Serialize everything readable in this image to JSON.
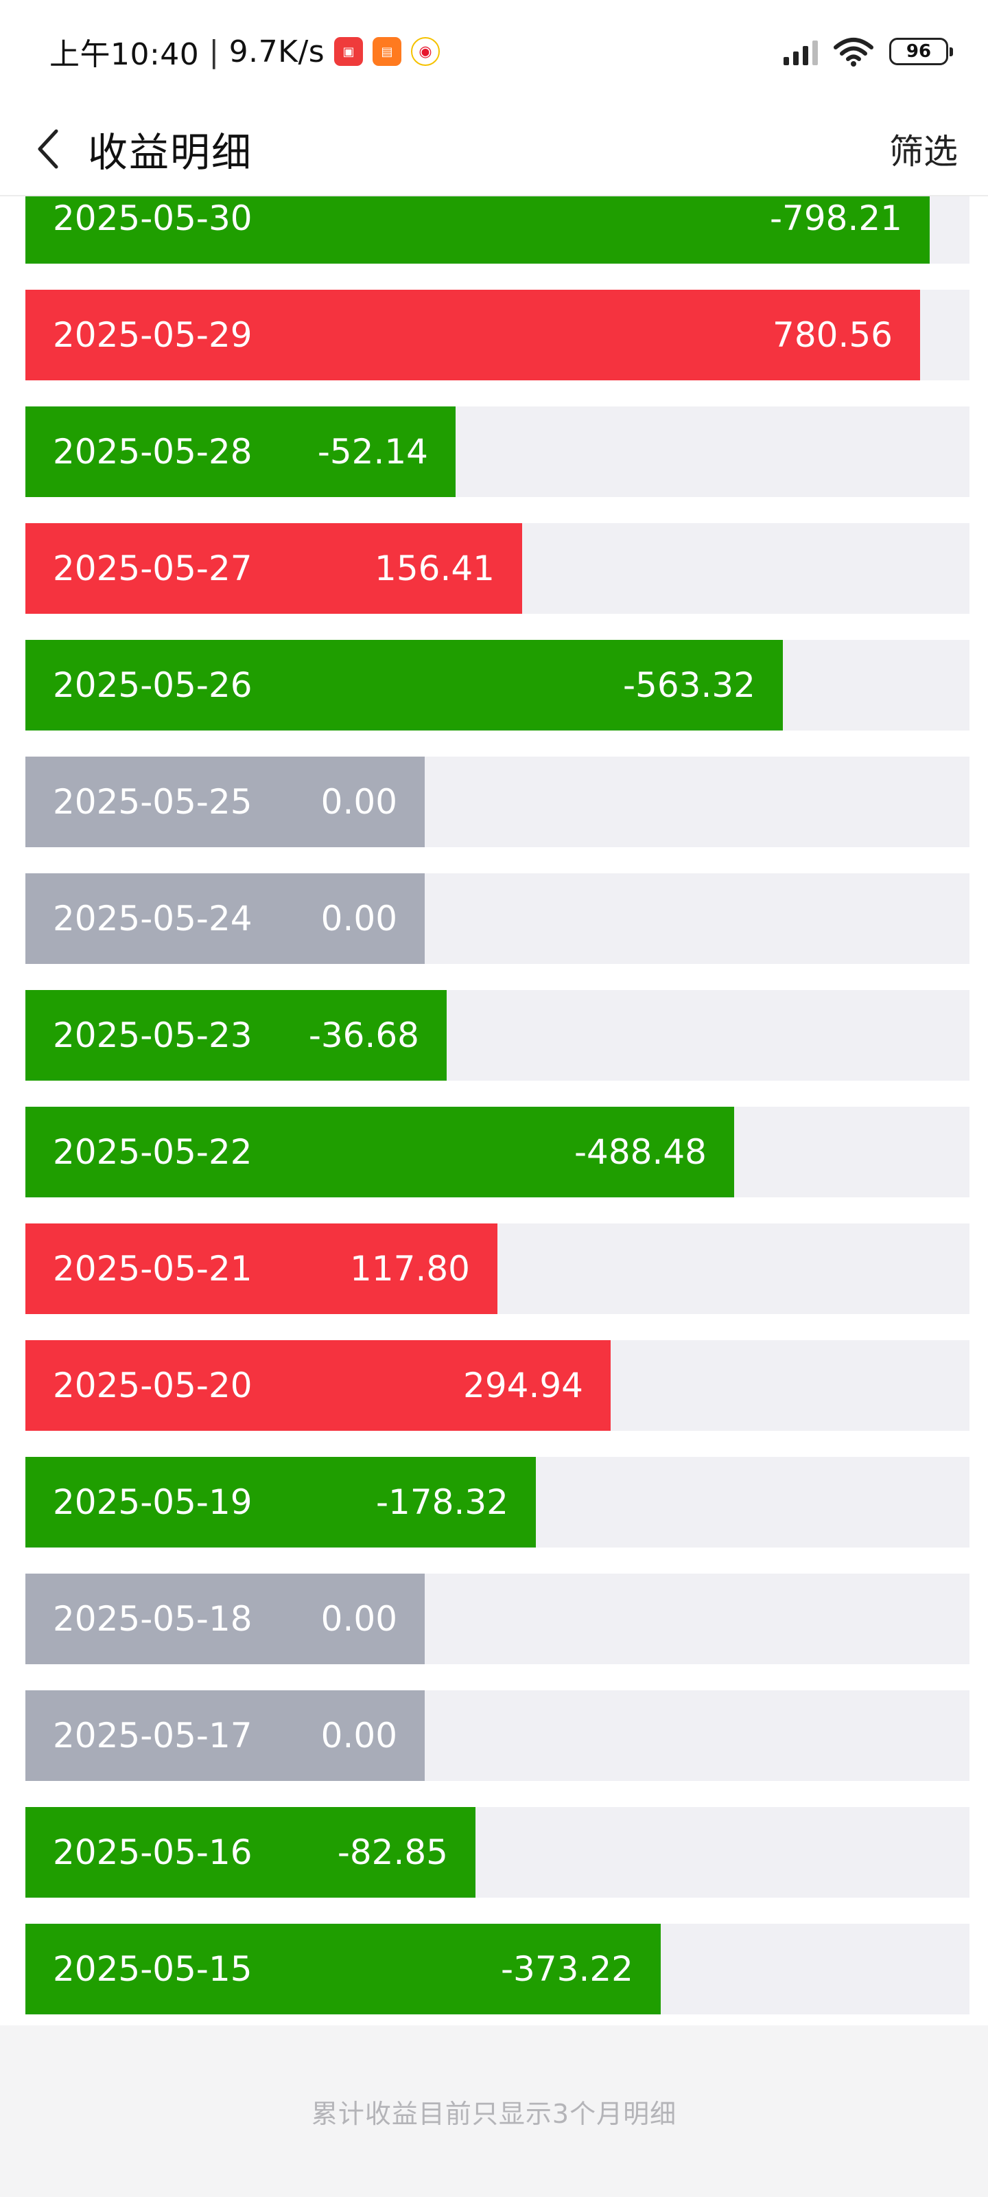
{
  "status_bar": {
    "time": "上午10:40",
    "net_speed": "9.7K/s",
    "battery": "96",
    "icons": [
      "app-red-icon",
      "app-orange-icon",
      "weibo-icon",
      "signal-icon",
      "wifi-icon",
      "battery-icon"
    ]
  },
  "header": {
    "title": "收益明细",
    "filter_label": "筛选",
    "back_icon": "chevron-left-icon"
  },
  "colors": {
    "loss": "#1f9e00",
    "gain": "#f5333f",
    "flat": "#a8acb8",
    "track": "#f0f0f4"
  },
  "rows": [
    {
      "date": "2025-05-30",
      "amount": "-798.21",
      "sign": "neg",
      "fill": 0.958
    },
    {
      "date": "2025-05-29",
      "amount": "780.56",
      "sign": "pos",
      "fill": 0.948
    },
    {
      "date": "2025-05-28",
      "amount": "-52.14",
      "sign": "neg",
      "fill": 0.456
    },
    {
      "date": "2025-05-27",
      "amount": "156.41",
      "sign": "pos",
      "fill": 0.526
    },
    {
      "date": "2025-05-26",
      "amount": "-563.32",
      "sign": "neg",
      "fill": 0.802
    },
    {
      "date": "2025-05-25",
      "amount": "0.00",
      "sign": "zero",
      "fill": 0.423
    },
    {
      "date": "2025-05-24",
      "amount": "0.00",
      "sign": "zero",
      "fill": 0.423
    },
    {
      "date": "2025-05-23",
      "amount": "-36.68",
      "sign": "neg",
      "fill": 0.446
    },
    {
      "date": "2025-05-22",
      "amount": "-488.48",
      "sign": "neg",
      "fill": 0.751
    },
    {
      "date": "2025-05-21",
      "amount": "117.80",
      "sign": "pos",
      "fill": 0.5
    },
    {
      "date": "2025-05-20",
      "amount": "294.94",
      "sign": "pos",
      "fill": 0.62
    },
    {
      "date": "2025-05-19",
      "amount": "-178.32",
      "sign": "neg",
      "fill": 0.541
    },
    {
      "date": "2025-05-18",
      "amount": "0.00",
      "sign": "zero",
      "fill": 0.423
    },
    {
      "date": "2025-05-17",
      "amount": "0.00",
      "sign": "zero",
      "fill": 0.423
    },
    {
      "date": "2025-05-16",
      "amount": "-82.85",
      "sign": "neg",
      "fill": 0.477
    },
    {
      "date": "2025-05-15",
      "amount": "-373.22",
      "sign": "neg",
      "fill": 0.673
    }
  ],
  "footer": {
    "note": "累计收益目前只显示3个月明细"
  }
}
